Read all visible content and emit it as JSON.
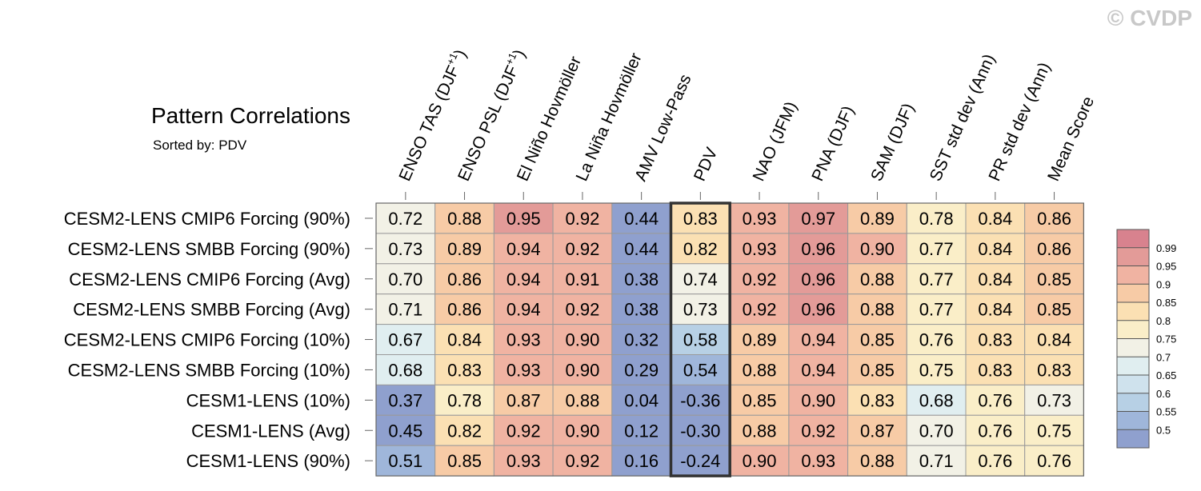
{
  "watermark": "© CVDP",
  "chart_data": {
    "type": "heatmap",
    "title": "Pattern Correlations",
    "subtitle": "Sorted by: PDV",
    "highlight_column": "PDV",
    "columns": [
      "ENSO TAS (DJF+1)",
      "ENSO PSL (DJF+1)",
      "El Niño Hovmöller",
      "La Niña Hovmöller",
      "AMV Low-Pass",
      "PDV",
      "NAO (JFM)",
      "PNA (DJF)",
      "SAM (DJF)",
      "SST std dev (Ann)",
      "PR std dev (Ann)",
      "Mean Score"
    ],
    "rows": [
      "CESM2-LENS CMIP6 Forcing (90%)",
      "CESM2-LENS SMBB Forcing (90%)",
      "CESM2-LENS CMIP6 Forcing (Avg)",
      "CESM2-LENS SMBB Forcing (Avg)",
      "CESM2-LENS CMIP6 Forcing (10%)",
      "CESM2-LENS SMBB Forcing (10%)",
      "CESM1-LENS (10%)",
      "CESM1-LENS (Avg)",
      "CESM1-LENS (90%)"
    ],
    "values": [
      [
        "0.72",
        "0.88",
        "0.95",
        "0.92",
        "0.44",
        "0.83",
        "0.93",
        "0.97",
        "0.89",
        "0.78",
        "0.84",
        "0.86"
      ],
      [
        "0.73",
        "0.89",
        "0.94",
        "0.92",
        "0.44",
        "0.82",
        "0.93",
        "0.96",
        "0.90",
        "0.77",
        "0.84",
        "0.86"
      ],
      [
        "0.70",
        "0.86",
        "0.94",
        "0.91",
        "0.38",
        "0.74",
        "0.92",
        "0.96",
        "0.88",
        "0.77",
        "0.84",
        "0.85"
      ],
      [
        "0.71",
        "0.86",
        "0.94",
        "0.92",
        "0.38",
        "0.73",
        "0.92",
        "0.96",
        "0.88",
        "0.77",
        "0.84",
        "0.85"
      ],
      [
        "0.67",
        "0.84",
        "0.93",
        "0.90",
        "0.32",
        "0.58",
        "0.89",
        "0.94",
        "0.85",
        "0.76",
        "0.83",
        "0.84"
      ],
      [
        "0.68",
        "0.83",
        "0.93",
        "0.90",
        "0.29",
        "0.54",
        "0.88",
        "0.94",
        "0.85",
        "0.75",
        "0.83",
        "0.83"
      ],
      [
        "0.37",
        "0.78",
        "0.87",
        "0.88",
        "0.04",
        "-0.36",
        "0.85",
        "0.90",
        "0.83",
        "0.68",
        "0.76",
        "0.73"
      ],
      [
        "0.45",
        "0.82",
        "0.92",
        "0.90",
        "0.12",
        "-0.30",
        "0.88",
        "0.92",
        "0.87",
        "0.70",
        "0.76",
        "0.75"
      ],
      [
        "0.51",
        "0.85",
        "0.93",
        "0.92",
        "0.16",
        "-0.24",
        "0.90",
        "0.93",
        "0.88",
        "0.71",
        "0.76",
        "0.76"
      ]
    ],
    "colorbar": {
      "levels": [
        "0.99",
        "0.95",
        "0.9",
        "0.85",
        "0.8",
        "0.75",
        "0.7",
        "0.65",
        "0.6",
        "0.55",
        "0.5"
      ],
      "colors": [
        "#d8828e",
        "#e39b98",
        "#f0b3a2",
        "#f7cba6",
        "#fbe0b3",
        "#faeec8",
        "#f2f1e6",
        "#e0eef0",
        "#cfe2ed",
        "#b7d0e5",
        "#9fb6da",
        "#8fa0ce"
      ]
    }
  }
}
